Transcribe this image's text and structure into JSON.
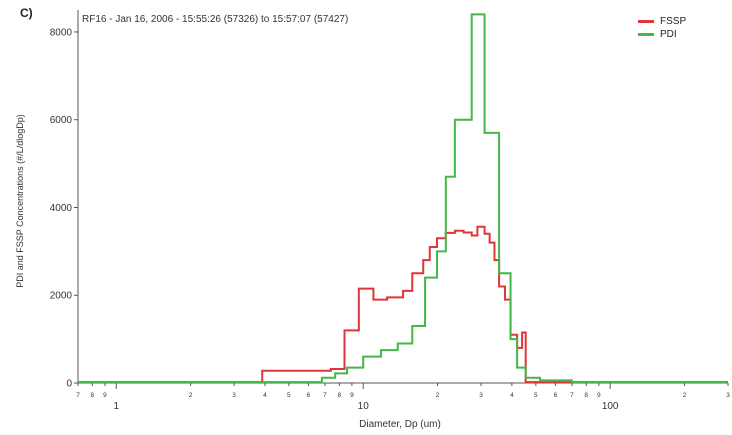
{
  "panel_label": "C)",
  "chart_data": {
    "type": "line",
    "subtitle": "RF16 - Jan 16, 2006 - 15:55:26 (57326) to 15:57:07 (57427)",
    "xlabel": "Diameter, Dp (um)",
    "ylabel": "PDI and FSSP Concentrations (#/L/dlogDp)",
    "xscale": "log",
    "xlim": [
      0.7,
      300
    ],
    "ylim": [
      0,
      8500
    ],
    "yticks": [
      0,
      2000,
      4000,
      6000,
      8000
    ],
    "x_major_ticks": [
      {
        "value": 1,
        "label": "1"
      },
      {
        "value": 10,
        "label": "10"
      },
      {
        "value": 100,
        "label": "100"
      }
    ],
    "x_minor_tick_labels": [
      "7",
      "8",
      "9",
      "2",
      "3",
      "4",
      "5",
      "6",
      "7",
      "8",
      "9",
      "2",
      "3",
      "4",
      "5",
      "6",
      "7",
      "8",
      "9",
      "2",
      "3",
      "4",
      "5",
      "6",
      "7",
      "8",
      "9",
      "2",
      "3"
    ],
    "legend": {
      "position": "top-right",
      "entries": [
        "FSSP",
        "PDI"
      ]
    },
    "grid": false,
    "step_lines": true,
    "series": [
      {
        "name": "FSSP",
        "color": "#e0353a",
        "points": [
          [
            0.7,
            20
          ],
          [
            3.9,
            20
          ],
          [
            3.9,
            280
          ],
          [
            7.4,
            280
          ],
          [
            7.4,
            320
          ],
          [
            8.4,
            320
          ],
          [
            8.4,
            1200
          ],
          [
            9.6,
            1200
          ],
          [
            9.6,
            2150
          ],
          [
            11.0,
            2150
          ],
          [
            11.0,
            1900
          ],
          [
            12.5,
            1900
          ],
          [
            12.5,
            1950
          ],
          [
            14.5,
            1950
          ],
          [
            14.5,
            2100
          ],
          [
            15.8,
            2100
          ],
          [
            15.8,
            2500
          ],
          [
            17.5,
            2500
          ],
          [
            17.5,
            2800
          ],
          [
            18.6,
            2800
          ],
          [
            18.6,
            3100
          ],
          [
            19.9,
            3100
          ],
          [
            19.9,
            3300
          ],
          [
            21.6,
            3300
          ],
          [
            21.6,
            3420
          ],
          [
            23.5,
            3420
          ],
          [
            23.5,
            3470
          ],
          [
            25.5,
            3470
          ],
          [
            25.5,
            3430
          ],
          [
            27.5,
            3430
          ],
          [
            27.5,
            3360
          ],
          [
            29.0,
            3360
          ],
          [
            29.0,
            3560
          ],
          [
            31.0,
            3560
          ],
          [
            31.0,
            3400
          ],
          [
            32.5,
            3400
          ],
          [
            32.5,
            3200
          ],
          [
            34.0,
            3200
          ],
          [
            34.0,
            2800
          ],
          [
            35.5,
            2800
          ],
          [
            35.5,
            2200
          ],
          [
            37.5,
            2200
          ],
          [
            37.5,
            1900
          ],
          [
            39.5,
            1900
          ],
          [
            39.5,
            1100
          ],
          [
            42.0,
            1100
          ],
          [
            42.0,
            800
          ],
          [
            44.0,
            800
          ],
          [
            44.0,
            1150
          ],
          [
            45.5,
            1150
          ],
          [
            45.5,
            20
          ],
          [
            300,
            20
          ]
        ]
      },
      {
        "name": "PDI",
        "color": "#43b747",
        "points": [
          [
            0.7,
            20
          ],
          [
            6.8,
            20
          ],
          [
            6.8,
            120
          ],
          [
            7.7,
            120
          ],
          [
            7.7,
            220
          ],
          [
            8.6,
            220
          ],
          [
            8.6,
            350
          ],
          [
            10.0,
            350
          ],
          [
            10.0,
            600
          ],
          [
            11.8,
            600
          ],
          [
            11.8,
            750
          ],
          [
            13.8,
            750
          ],
          [
            13.8,
            900
          ],
          [
            15.8,
            900
          ],
          [
            15.8,
            1300
          ],
          [
            17.8,
            1300
          ],
          [
            17.8,
            2400
          ],
          [
            19.9,
            2400
          ],
          [
            19.9,
            3000
          ],
          [
            21.6,
            3000
          ],
          [
            21.6,
            4700
          ],
          [
            23.5,
            4700
          ],
          [
            23.5,
            6000
          ],
          [
            27.5,
            6000
          ],
          [
            27.5,
            8400
          ],
          [
            31.0,
            8400
          ],
          [
            31.0,
            5700
          ],
          [
            35.5,
            5700
          ],
          [
            35.5,
            2500
          ],
          [
            39.5,
            2500
          ],
          [
            39.5,
            1000
          ],
          [
            42.0,
            1000
          ],
          [
            42.0,
            350
          ],
          [
            45.5,
            350
          ],
          [
            45.5,
            120
          ],
          [
            52.0,
            120
          ],
          [
            52.0,
            60
          ],
          [
            70.0,
            60
          ],
          [
            70.0,
            20
          ],
          [
            300,
            20
          ]
        ]
      }
    ]
  }
}
